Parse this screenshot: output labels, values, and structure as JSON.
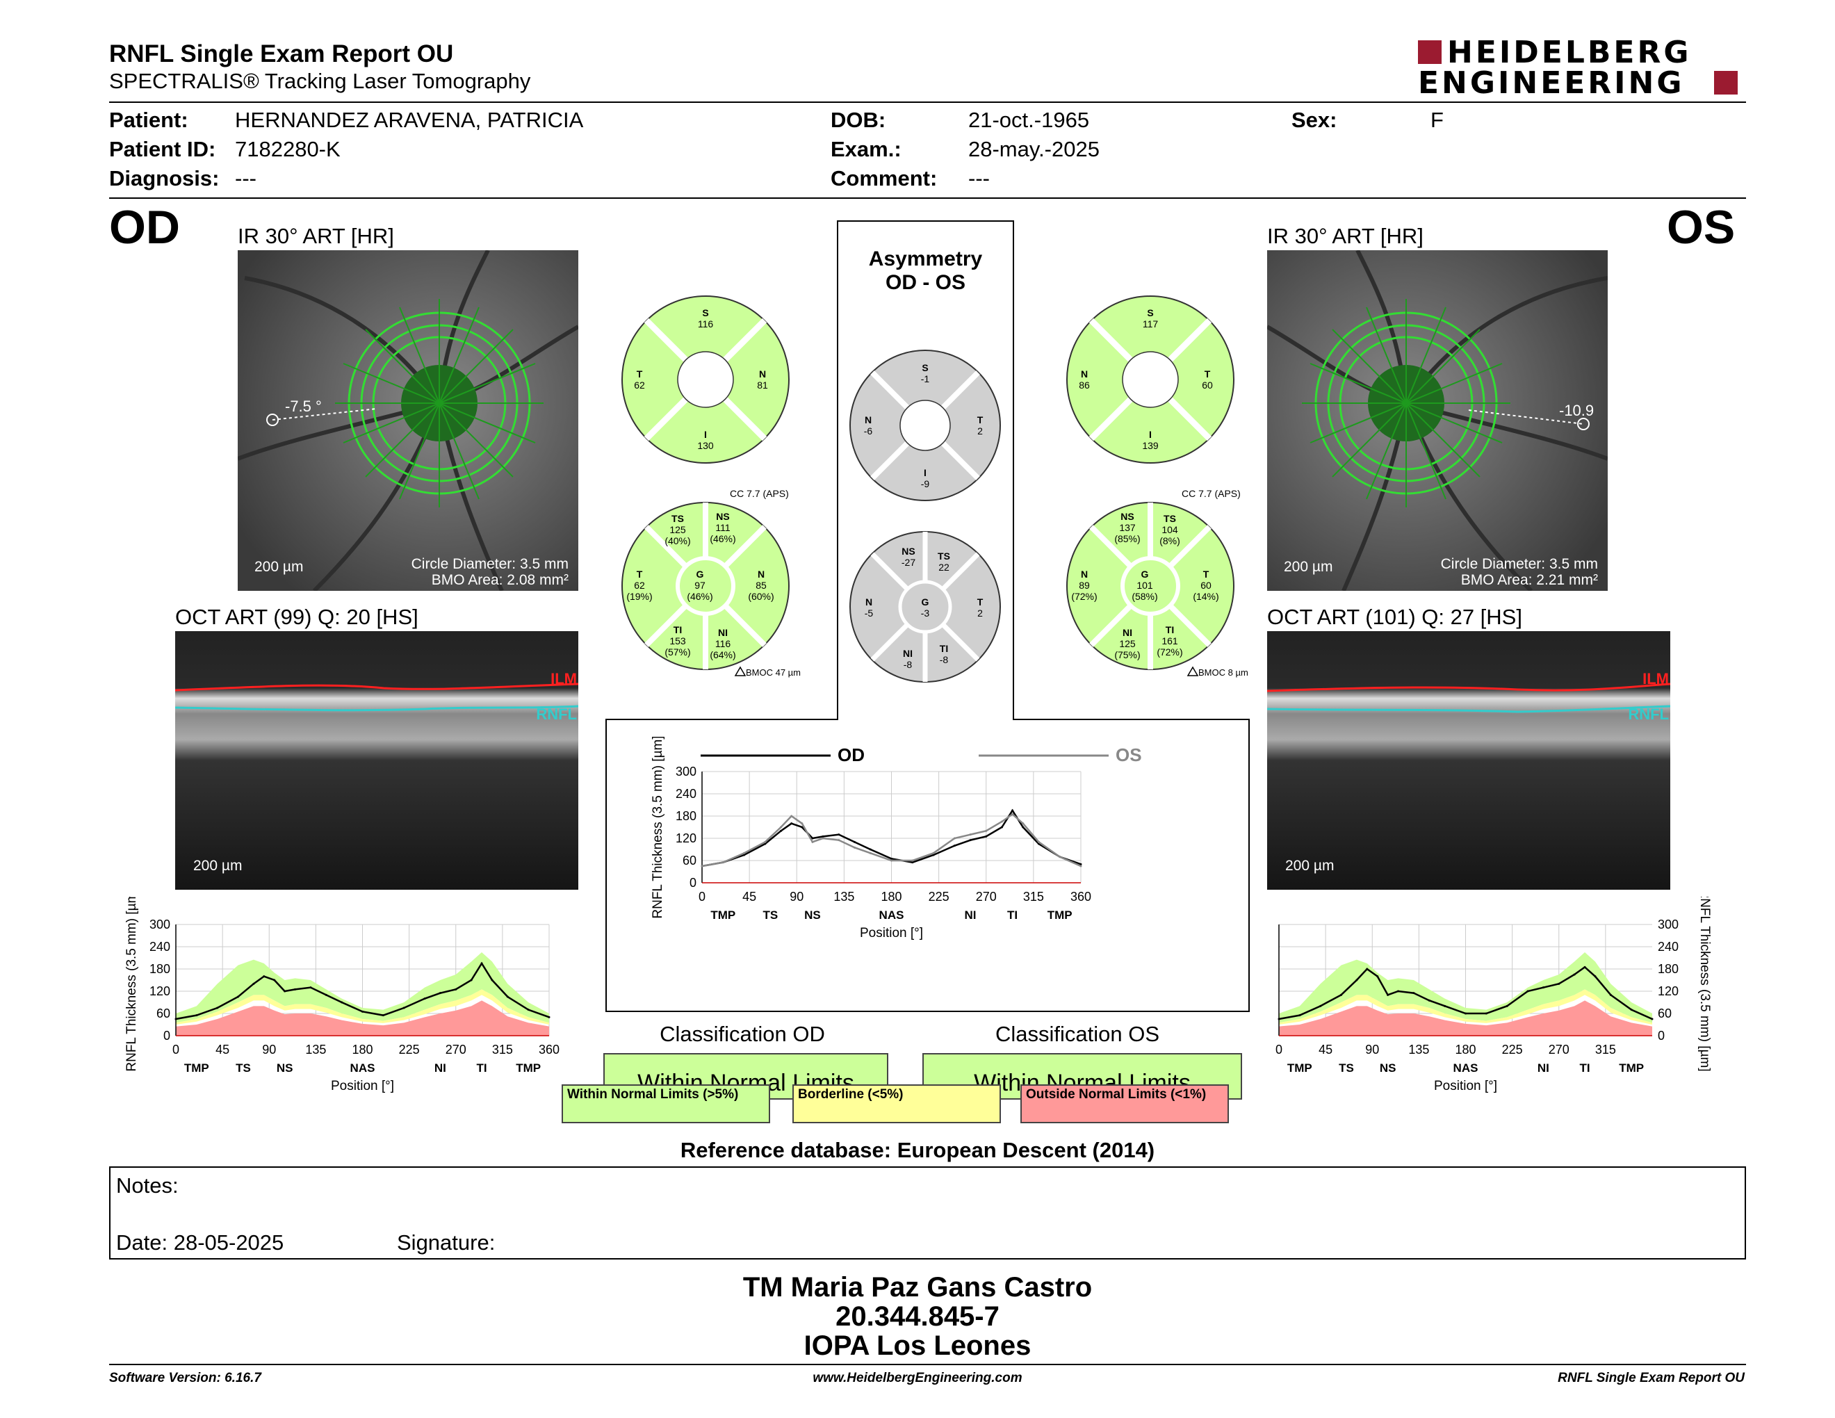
{
  "header": {
    "title": "RNFL Single Exam Report OU",
    "subtitle": "SPECTRALIS® Tracking Laser Tomography",
    "logo_line1": "HEIDELBERG",
    "logo_line2": "ENGINEERING"
  },
  "patient": {
    "patient_label": "Patient:",
    "patient_value": "HERNANDEZ ARAVENA, PATRICIA",
    "id_label": "Patient ID:",
    "id_value": "7182280-K",
    "diag_label": "Diagnosis:",
    "diag_value": "---",
    "dob_label": "DOB:",
    "dob_value": "21-oct.-1965",
    "exam_label": "Exam.:",
    "exam_value": "28-may.-2025",
    "comment_label": "Comment:",
    "comment_value": "---",
    "sex_label": "Sex:",
    "sex_value": "F"
  },
  "od": {
    "eye": "OD",
    "ir_title": "IR 30° ART [HR]",
    "angle": "-7.5 °",
    "scale": "200 µm",
    "circle": "Circle Diameter: 3.5 mm",
    "bmo": "BMO Area: 2.08 mm²",
    "oct_title": "OCT ART (99) Q: 20 [HS]",
    "oct_scale": "200 µm",
    "ilm": "ILM",
    "rnfl": "RNFL",
    "sectors4": {
      "S": "116",
      "T": "62",
      "N": "81",
      "I": "130"
    },
    "cc": "CC 7.7 (APS)",
    "bmoc": "BMOC 47 µm",
    "sectors6": {
      "TS": [
        "TS",
        "125",
        "(40%)"
      ],
      "NS": [
        "NS",
        "111",
        "(46%)"
      ],
      "T": [
        "T",
        "62",
        "(19%)"
      ],
      "G": [
        "G",
        "97",
        "(46%)"
      ],
      "N": [
        "N",
        "85",
        "(60%)"
      ],
      "TI": [
        "TI",
        "153",
        "(57%)"
      ],
      "NI": [
        "NI",
        "116",
        "(64%)"
      ]
    },
    "classification_title": "Classification OD",
    "classification": "Within Normal Limits"
  },
  "os": {
    "eye": "OS",
    "ir_title": "IR 30° ART [HR]",
    "angle": "-10.9",
    "scale": "200 µm",
    "circle": "Circle Diameter: 3.5 mm",
    "bmo": "BMO Area: 2.21 mm²",
    "oct_title": "OCT ART (101) Q: 27 [HS]",
    "oct_scale": "200 µm",
    "ilm": "ILM",
    "rnfl": "RNFL",
    "sectors4": {
      "S": "117",
      "N": "86",
      "T": "60",
      "I": "139"
    },
    "cc": "CC 7.7 (APS)",
    "bmoc": "BMOC 8 µm",
    "sectors6": {
      "NS": [
        "NS",
        "137",
        "(85%)"
      ],
      "TS": [
        "TS",
        "104",
        "(8%)"
      ],
      "N": [
        "N",
        "89",
        "(72%)"
      ],
      "G": [
        "G",
        "101",
        "(58%)"
      ],
      "T": [
        "T",
        "60",
        "(14%)"
      ],
      "NI": [
        "NI",
        "125",
        "(75%)"
      ],
      "TI": [
        "TI",
        "161",
        "(72%)"
      ]
    },
    "classification_title": "Classification OS",
    "classification": "Within Normal Limits"
  },
  "asymmetry": {
    "title1": "Asymmetry",
    "title2": "OD - OS",
    "sectors4": {
      "S": "-1",
      "N": "-6",
      "T": "2",
      "I": "-9"
    },
    "sectors6": {
      "NS": [
        "NS",
        "-27"
      ],
      "TS": [
        "TS",
        "22"
      ],
      "N": [
        "N",
        "-5"
      ],
      "G": [
        "G",
        "-3"
      ],
      "T": [
        "T",
        "2"
      ],
      "NI": [
        "NI",
        "-8"
      ],
      "TI": [
        "TI",
        "-8"
      ]
    },
    "legend_od": "OD",
    "legend_os": "OS"
  },
  "legend": {
    "wnl": "Within Normal Limits (>5%)",
    "bl": "Borderline (<5%)",
    "onl": "Outside Normal Limits (<1%)"
  },
  "colors": {
    "normal": "#ccff99",
    "border": "#ffff99",
    "outside": "#ff9999",
    "grey": "#d0d0d0",
    "ilm": "#ff0000",
    "rnfl": "#33cccc"
  },
  "reference": "Reference database: European Descent (2014)",
  "notes": {
    "label": "Notes:",
    "date": "Date: 28-05-2025",
    "signature": "Signature:"
  },
  "signer": {
    "name": "TM Maria Paz Gans Castro",
    "rut": "20.344.845-7",
    "place": "IOPA Los Leones"
  },
  "footer": {
    "left": "Software Version: 6.16.7",
    "center": "www.HeidelbergEngineering.com",
    "right": "RNFL Single Exam Report OU"
  },
  "chart_data": [
    {
      "type": "line",
      "id": "od-profile",
      "ylabel": "RNFL Thickness (3.5 mm) [µm]",
      "xlabel": "Position [°]",
      "xlim": [
        0,
        360
      ],
      "ylim": [
        0,
        300
      ],
      "xticks": [
        0,
        45,
        90,
        135,
        180,
        225,
        270,
        315,
        360
      ],
      "yticks": [
        0,
        60,
        120,
        180,
        240,
        300
      ],
      "region_labels": [
        [
          "TMP",
          20
        ],
        [
          "TS",
          65
        ],
        [
          "NS",
          105
        ],
        [
          "NAS",
          180
        ],
        [
          "NI",
          255
        ],
        [
          "TI",
          295
        ],
        [
          "TMP",
          340
        ]
      ],
      "x": [
        0,
        20,
        40,
        60,
        75,
        85,
        95,
        105,
        115,
        130,
        145,
        160,
        180,
        200,
        220,
        240,
        255,
        270,
        285,
        295,
        305,
        320,
        340,
        360
      ],
      "series": [
        {
          "values": [
            45,
            55,
            75,
            105,
            140,
            160,
            150,
            120,
            125,
            130,
            110,
            90,
            65,
            55,
            75,
            100,
            115,
            125,
            150,
            195,
            150,
            105,
            70,
            50
          ]
        }
      ],
      "normal_band_upper": [
        60,
        80,
        140,
        190,
        205,
        195,
        170,
        150,
        155,
        150,
        125,
        100,
        75,
        70,
        90,
        130,
        150,
        165,
        200,
        225,
        200,
        140,
        90,
        60
      ],
      "normal_band_lower": [
        35,
        45,
        65,
        90,
        110,
        110,
        95,
        80,
        85,
        85,
        75,
        60,
        45,
        40,
        50,
        70,
        85,
        95,
        110,
        125,
        110,
        75,
        50,
        35
      ],
      "border_band_lower": [
        30,
        38,
        55,
        75,
        95,
        95,
        80,
        68,
        72,
        72,
        62,
        50,
        38,
        34,
        42,
        58,
        72,
        80,
        95,
        110,
        95,
        62,
        42,
        30
      ],
      "outside_band_upper": [
        25,
        30,
        45,
        65,
        80,
        80,
        68,
        58,
        60,
        60,
        52,
        42,
        32,
        28,
        35,
        50,
        60,
        68,
        80,
        95,
        80,
        52,
        35,
        25
      ]
    },
    {
      "type": "line",
      "id": "os-profile",
      "ylabel": "RNFL Thickness (3.5 mm) [µm]",
      "xlabel": "Position [°]",
      "xlim": [
        0,
        360
      ],
      "ylim": [
        0,
        300
      ],
      "xticks": [
        0,
        45,
        90,
        135,
        180,
        225,
        270,
        315
      ],
      "yticks": [
        0,
        60,
        120,
        180,
        240,
        300
      ],
      "region_labels": [
        [
          "TMP",
          20
        ],
        [
          "TS",
          65
        ],
        [
          "NS",
          105
        ],
        [
          "NAS",
          180
        ],
        [
          "NI",
          255
        ],
        [
          "TI",
          295
        ],
        [
          "TMP",
          340
        ]
      ],
      "x": [
        0,
        20,
        40,
        60,
        75,
        85,
        95,
        105,
        115,
        130,
        145,
        160,
        180,
        200,
        220,
        240,
        255,
        270,
        285,
        295,
        305,
        320,
        340,
        360
      ],
      "series": [
        {
          "values": [
            45,
            55,
            80,
            110,
            150,
            180,
            160,
            110,
            120,
            115,
            95,
            80,
            60,
            60,
            80,
            120,
            130,
            140,
            165,
            185,
            160,
            110,
            70,
            45
          ]
        }
      ],
      "normal_band_upper": [
        60,
        80,
        140,
        190,
        205,
        195,
        170,
        150,
        155,
        150,
        125,
        100,
        75,
        70,
        90,
        130,
        150,
        165,
        200,
        225,
        200,
        140,
        90,
        60
      ],
      "normal_band_lower": [
        35,
        45,
        65,
        90,
        110,
        110,
        95,
        80,
        85,
        85,
        75,
        60,
        45,
        40,
        50,
        70,
        85,
        95,
        110,
        125,
        110,
        75,
        50,
        35
      ],
      "border_band_lower": [
        30,
        38,
        55,
        75,
        95,
        95,
        80,
        68,
        72,
        72,
        62,
        50,
        38,
        34,
        42,
        58,
        72,
        80,
        95,
        110,
        95,
        62,
        42,
        30
      ],
      "outside_band_upper": [
        25,
        30,
        45,
        65,
        80,
        80,
        68,
        58,
        60,
        60,
        52,
        42,
        32,
        28,
        35,
        50,
        60,
        68,
        80,
        95,
        80,
        52,
        35,
        25
      ]
    },
    {
      "type": "line",
      "id": "asym-profile",
      "ylabel": "RNFL Thickness (3.5 mm) [µm]",
      "xlabel": "Position [°]",
      "xlim": [
        0,
        360
      ],
      "ylim": [
        0,
        300
      ],
      "xticks": [
        0,
        45,
        90,
        135,
        180,
        225,
        270,
        315,
        360
      ],
      "yticks": [
        0,
        60,
        120,
        180,
        240,
        300
      ],
      "region_labels": [
        [
          "TMP",
          20
        ],
        [
          "TS",
          65
        ],
        [
          "NS",
          105
        ],
        [
          "NAS",
          180
        ],
        [
          "NI",
          255
        ],
        [
          "TI",
          295
        ],
        [
          "TMP",
          340
        ]
      ],
      "x": [
        0,
        20,
        40,
        60,
        75,
        85,
        95,
        105,
        115,
        130,
        145,
        160,
        180,
        200,
        220,
        240,
        255,
        270,
        285,
        295,
        305,
        320,
        340,
        360
      ],
      "series": [
        {
          "name": "OD",
          "values": [
            45,
            55,
            75,
            105,
            140,
            160,
            150,
            120,
            125,
            130,
            110,
            90,
            65,
            55,
            75,
            100,
            115,
            125,
            150,
            195,
            150,
            105,
            70,
            50
          ]
        },
        {
          "name": "OS",
          "values": [
            45,
            55,
            80,
            110,
            150,
            180,
            160,
            110,
            120,
            115,
            95,
            80,
            60,
            60,
            80,
            120,
            130,
            140,
            165,
            185,
            160,
            110,
            70,
            45
          ]
        }
      ]
    }
  ]
}
